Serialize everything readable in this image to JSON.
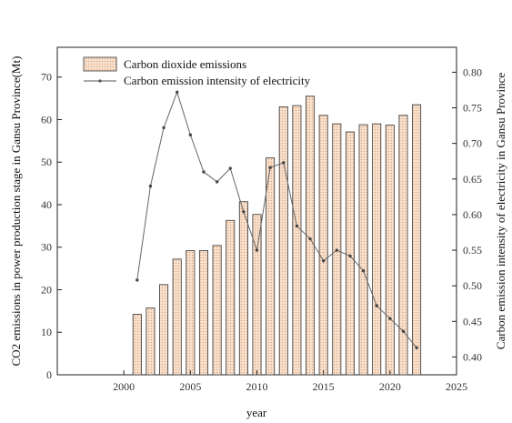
{
  "chart_data": {
    "type": "bar",
    "x": [
      2001,
      2002,
      2003,
      2004,
      2005,
      2006,
      2007,
      2008,
      2009,
      2010,
      2011,
      2012,
      2013,
      2014,
      2015,
      2016,
      2017,
      2018,
      2019,
      2020,
      2021,
      2022
    ],
    "series": [
      {
        "name": "Carbon dioxide emissions",
        "type": "bar",
        "axis": "left",
        "values": [
          14.2,
          15.7,
          21.2,
          27.2,
          29.2,
          29.2,
          30.4,
          36.3,
          40.7,
          37.7,
          51.0,
          63.0,
          63.3,
          65.5,
          61.0,
          59.0,
          57.1,
          58.8,
          59.0,
          58.7,
          61.0,
          63.5
        ],
        "color": "#f6d9c2"
      },
      {
        "name": "Carbon emission intensity of electricity",
        "type": "line",
        "axis": "right",
        "values": [
          0.508,
          0.64,
          0.722,
          0.772,
          0.712,
          0.66,
          0.646,
          0.665,
          0.604,
          0.55,
          0.666,
          0.673,
          0.584,
          0.566,
          0.535,
          0.55,
          0.542,
          0.521,
          0.472,
          0.454,
          0.436,
          0.413
        ],
        "color": "#555555"
      }
    ],
    "xlabel": "year",
    "ylabel_left": "CO2 emissions in power production stage in Gansu Province(Mt)",
    "ylabel_right": "Carbon emission intensity of electricity in Gansu Province",
    "xlim": [
      1995,
      2025
    ],
    "ylim_left": [
      0,
      77
    ],
    "ylim_right": [
      0.375,
      0.835
    ],
    "xticks": [
      "2000",
      "2005",
      "2010",
      "2015",
      "2020",
      "2025"
    ],
    "yticks_left": [
      "0",
      "10",
      "20",
      "30",
      "40",
      "50",
      "60",
      "70"
    ],
    "yticks_right": [
      "0.40",
      "0.45",
      "0.50",
      "0.55",
      "0.60",
      "0.65",
      "0.70",
      "0.75",
      "0.80"
    ],
    "legend": {
      "placement": "top-left",
      "entries": [
        "Carbon dioxide emissions",
        "Carbon emission intensity of electricity"
      ]
    },
    "grid": false
  }
}
